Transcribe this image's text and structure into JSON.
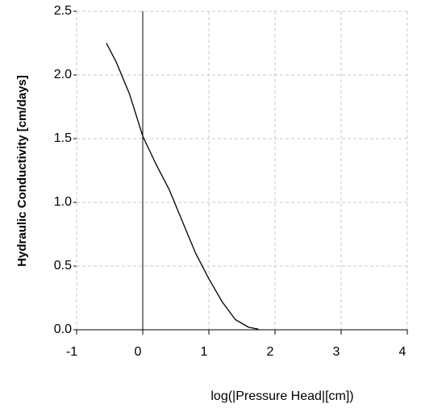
{
  "chart_data": {
    "type": "line",
    "xlabel": "log(|Pressure Head|[cm])",
    "ylabel": "Hydraulic Conductivity  [cm/days]",
    "series": [
      {
        "color": "#000000",
        "x": [
          -0.55,
          -0.4,
          -0.2,
          0,
          0.2,
          0.4,
          0.6,
          0.8,
          1.0,
          1.2,
          1.4,
          1.6,
          1.75
        ],
        "values": [
          2.25,
          2.1,
          1.85,
          1.52,
          1.3,
          1.1,
          0.85,
          0.6,
          0.4,
          0.22,
          0.08,
          0.02,
          0.005
        ]
      }
    ],
    "xlim": [
      -1,
      4
    ],
    "xticks": [
      -1,
      0,
      1,
      2,
      3,
      4
    ],
    "ylim": [
      0,
      2.5
    ],
    "yticks": [
      {
        "value": 0,
        "label": "0.0"
      },
      {
        "value": 0.5,
        "label": "0.5"
      },
      {
        "value": 1,
        "label": "1.0"
      },
      {
        "value": 1.5,
        "label": "1.5"
      },
      {
        "value": 2,
        "label": "2.0"
      },
      {
        "value": 2.5,
        "label": "2.5"
      }
    ],
    "grid": true
  }
}
